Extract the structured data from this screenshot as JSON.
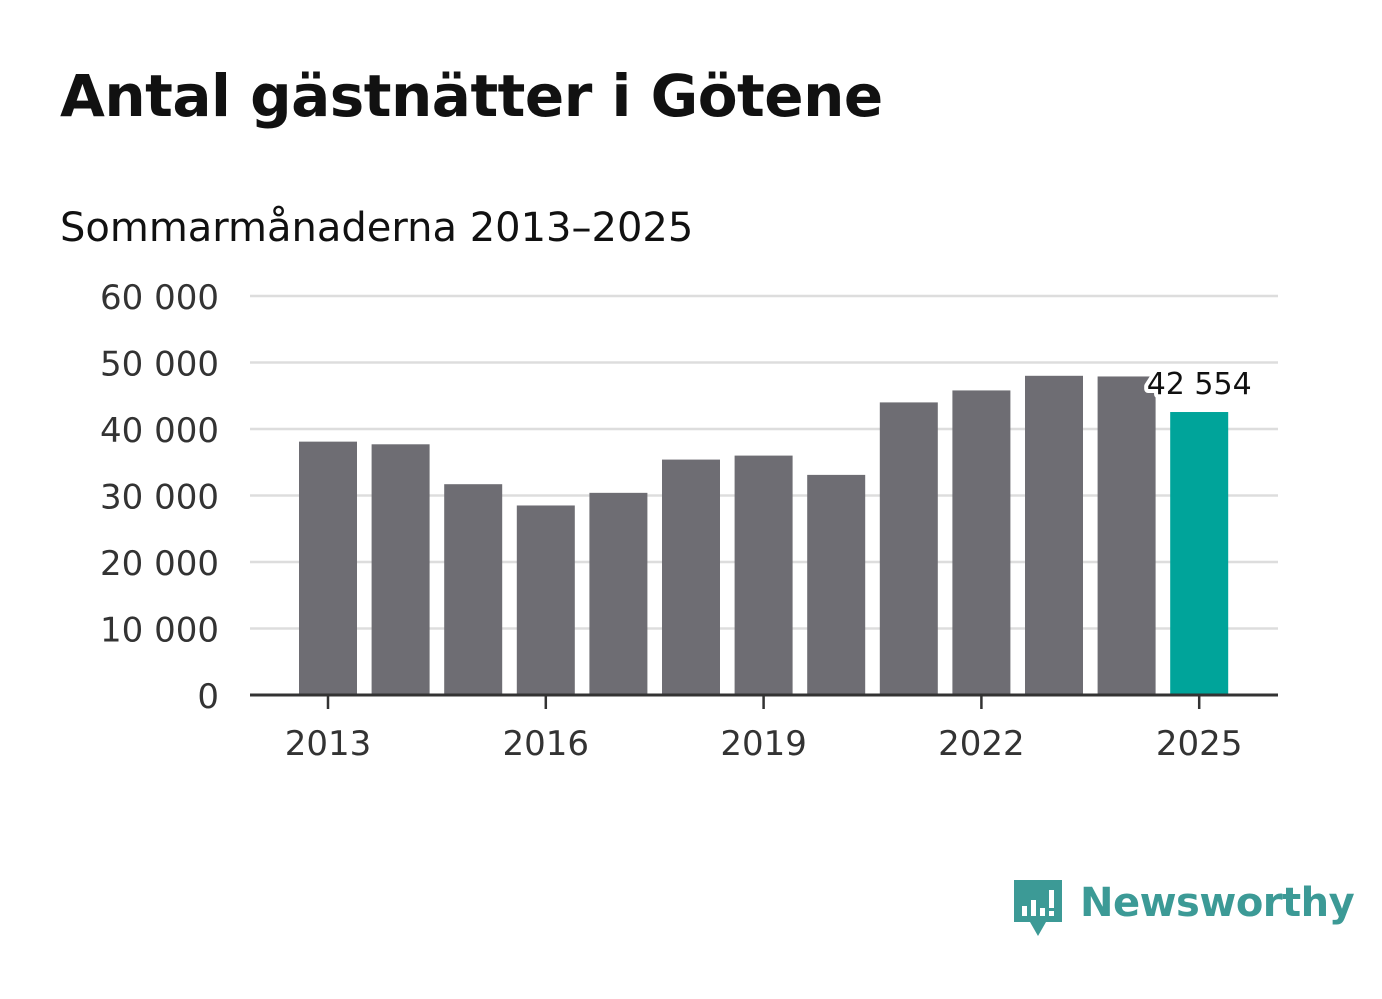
{
  "chart_data": {
    "type": "bar",
    "title": "Antal gästnätter i Götene",
    "subtitle": "Sommarmånaderna 2013–2025",
    "categories": [
      "2013",
      "2014",
      "2015",
      "2016",
      "2017",
      "2018",
      "2019",
      "2020",
      "2021",
      "2022",
      "2023",
      "2024",
      "2025"
    ],
    "values": [
      38100,
      37700,
      31700,
      28500,
      30400,
      35400,
      36000,
      33100,
      44000,
      45800,
      48000,
      47900,
      42554
    ],
    "x_tick_labels": [
      "2013",
      "2016",
      "2019",
      "2022",
      "2025"
    ],
    "y_ticks": [
      0,
      10000,
      20000,
      30000,
      40000,
      50000,
      60000
    ],
    "y_tick_labels": [
      "0",
      "10 000",
      "20 000",
      "30 000",
      "40 000",
      "50 000",
      "60 000"
    ],
    "ylim": [
      0,
      60000
    ],
    "grid": true,
    "highlight_index": 12,
    "highlight_label": "42 554",
    "colors": {
      "bar": "#6e6d73",
      "highlight": "#00a49a",
      "grid": "#dddddd",
      "axis": "#333333"
    }
  },
  "brand": {
    "name": "Newsworthy",
    "icon": "newsworthy-logo-icon",
    "color": "#3c9a96"
  }
}
